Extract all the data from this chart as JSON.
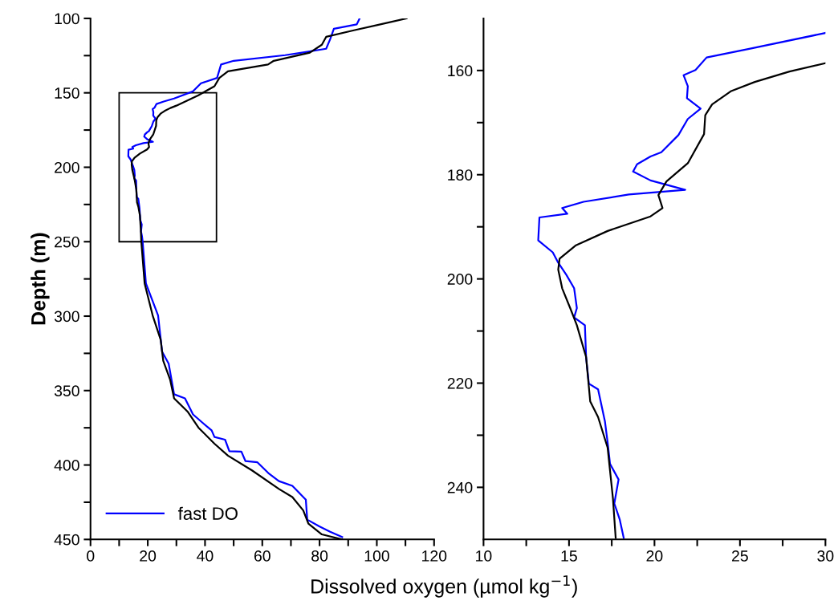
{
  "chart_data": [
    {
      "type": "line",
      "ylabel": "Depth (m)",
      "xlabel": "Dissolved oxygen (µmol kg$^{−1}$)",
      "xlim": [
        0,
        120
      ],
      "ylim": [
        450,
        100
      ],
      "xticks": [
        0,
        {
          "value": 10,
          "label": null
        },
        20,
        {
          "value": 30,
          "label": null
        },
        40,
        {
          "value": 50,
          "label": null
        },
        60,
        {
          "value": 70,
          "label": null
        },
        80,
        {
          "value": 90,
          "label": null
        },
        100,
        {
          "value": 110,
          "label": null
        },
        120
      ],
      "yticks": [
        100,
        {
          "value": 125,
          "label": null
        },
        150,
        {
          "value": 175,
          "label": null
        },
        200,
        {
          "value": 225,
          "label": null
        },
        250,
        {
          "value": 275,
          "label": null
        },
        300,
        {
          "value": 325,
          "label": null
        },
        350,
        {
          "value": 375,
          "label": null
        },
        400,
        {
          "value": 425,
          "label": null
        },
        450
      ],
      "legend": "bottom left",
      "grid": false,
      "series": [
        {
          "name": "fast DO",
          "color": "#0000ff",
          "x": [
            94,
            93,
            85,
            83.7,
            82.3,
            73.8,
            68,
            50,
            45.6,
            44.2,
            38.6,
            35.8,
            29.2,
            25.6,
            23.05,
            22.4,
            21.7,
            21.95,
            21.9,
            22.7,
            21.95,
            21.4,
            20.4,
            19.77,
            18.98,
            18.75,
            19.77,
            21.8,
            18.5,
            15.85,
            14.6,
            14.9,
            13.27,
            13.2,
            14.05,
            14.37,
            14.84,
            15.3,
            15.46,
            15.3,
            15.93,
            16.0,
            16.16,
            16.7,
            17.1,
            17.26,
            17.4,
            17.9,
            17.65,
            17.97,
            18.2,
            19.35,
            23.6,
            25,
            27.3,
            29.2,
            33,
            35.8,
            39.5,
            42.3,
            43.3,
            47,
            48.5,
            52.7,
            54.1,
            58.3,
            62.1,
            65.8,
            70.5,
            75.2,
            75.7,
            79.9,
            83.7,
            87.9
          ],
          "values": [
            100,
            104,
            107,
            114,
            120.4,
            123,
            124.7,
            128.5,
            131,
            140,
            143.6,
            149,
            153.8,
            155.8,
            157.5,
            159.9,
            160.9,
            163,
            165.3,
            167.3,
            169.3,
            172.4,
            175.7,
            176.5,
            178,
            179.4,
            181.1,
            182.9,
            183.8,
            185.2,
            186.4,
            187.5,
            188.2,
            192.6,
            194.9,
            196.9,
            199.2,
            201.8,
            205.6,
            207.4,
            208.9,
            215,
            220.1,
            221.2,
            227.3,
            231.4,
            235.5,
            238.5,
            243.1,
            246.2,
            249.7,
            278,
            299.5,
            323.8,
            331.9,
            352.5,
            355.2,
            366,
            372.2,
            376.7,
            381.2,
            383,
            390.7,
            391,
            397.3,
            398.2,
            405.4,
            410.8,
            414,
            423.3,
            436.7,
            441.2,
            444.8,
            448.4
          ]
        },
        {
          "color": "#000000",
          "x": [
            110.4,
            100.6,
            92,
            82.3,
            80.8,
            76.6,
            64,
            62,
            48,
            45,
            43.3,
            37.7,
            30,
            27.9,
            25.87,
            24.46,
            23.37,
            22.97,
            22.9,
            21.95,
            20.7,
            20.23,
            20.47,
            19.77,
            17.26,
            15.38,
            14.45,
            14.37,
            14.6,
            15.07,
            15.46,
            16.0,
            16.24,
            16.7,
            17.26,
            17.57,
            17.73,
            18.9,
            21.7,
            24.5,
            25.4,
            27.8,
            29.2,
            33.9,
            37.7,
            43.3,
            48,
            56.4,
            65.8,
            70.5,
            74.3,
            76.1,
            80.8,
            87.9
          ],
          "values": [
            100,
            104.3,
            108,
            112.4,
            117.7,
            123,
            128.5,
            131,
            135.5,
            140,
            145.6,
            151.6,
            158.6,
            160.2,
            162.2,
            164,
            166.5,
            168.6,
            172.2,
            177.8,
            181.3,
            183.9,
            186.4,
            188,
            190.8,
            193.6,
            196.1,
            198.2,
            201.8,
            205.6,
            208.9,
            215,
            223.5,
            226.5,
            232.4,
            242.1,
            249.7,
            278,
            299.5,
            315.8,
            330,
            342.6,
            355.2,
            364.1,
            374.9,
            385.7,
            393.7,
            403.6,
            416.1,
            421.5,
            430.5,
            439.4,
            446.6,
            450
          ]
        }
      ]
    },
    {
      "type": "line",
      "xlim": [
        10,
        30
      ],
      "ylim": [
        250,
        150
      ],
      "xticks": [
        10,
        {
          "value": 12.5,
          "label": null
        },
        15,
        {
          "value": 17.5,
          "label": null
        },
        20,
        {
          "value": 22.5,
          "label": null
        },
        25,
        {
          "value": 27.5,
          "label": null
        },
        30
      ],
      "yticks": [
        160,
        {
          "value": 170,
          "label": null
        },
        180,
        {
          "value": 190,
          "label": null
        },
        200,
        {
          "value": 210,
          "label": null
        },
        220,
        {
          "value": 230,
          "label": null
        },
        240
      ],
      "grid": false,
      "series": [
        {
          "color": "#0000ff",
          "x": [
            30,
            25.6,
            23.05,
            22.4,
            21.7,
            21.95,
            21.9,
            22.7,
            21.95,
            21.4,
            20.4,
            19.77,
            18.98,
            18.75,
            19.77,
            21.8,
            18.5,
            15.85,
            14.6,
            14.9,
            13.27,
            13.2,
            14.05,
            14.37,
            14.84,
            15.3,
            15.46,
            15.3,
            15.93,
            16.0,
            16.16,
            16.7,
            17.1,
            17.26,
            17.4,
            17.9,
            17.65,
            17.97,
            18.2
          ],
          "values": [
            152.8,
            155.8,
            157.5,
            159.9,
            160.9,
            163,
            165.3,
            167.3,
            169.3,
            172.4,
            175.7,
            176.5,
            178,
            179.4,
            181.1,
            182.9,
            183.8,
            185.2,
            186.4,
            187.5,
            188.2,
            192.6,
            194.9,
            196.9,
            199.2,
            201.8,
            205.6,
            207.4,
            208.9,
            215,
            220.1,
            221.2,
            227.3,
            231.4,
            235.5,
            238.5,
            243.1,
            246.2,
            249.7
          ]
        },
        {
          "color": "#000000",
          "x": [
            30,
            27.9,
            25.87,
            24.46,
            23.37,
            22.97,
            22.9,
            21.95,
            20.7,
            20.23,
            20.47,
            19.77,
            17.26,
            15.38,
            14.45,
            14.37,
            14.6,
            15.07,
            15.46,
            16.0,
            16.24,
            16.7,
            17.26,
            17.57,
            17.73
          ],
          "values": [
            158.6,
            160.2,
            162.2,
            164,
            166.5,
            168.6,
            172.2,
            177.8,
            181.3,
            183.9,
            186.4,
            188,
            190.8,
            193.6,
            196.1,
            198.2,
            201.8,
            205.6,
            208.9,
            215,
            223.5,
            226.5,
            232.4,
            242.1,
            249.7
          ]
        }
      ]
    }
  ]
}
